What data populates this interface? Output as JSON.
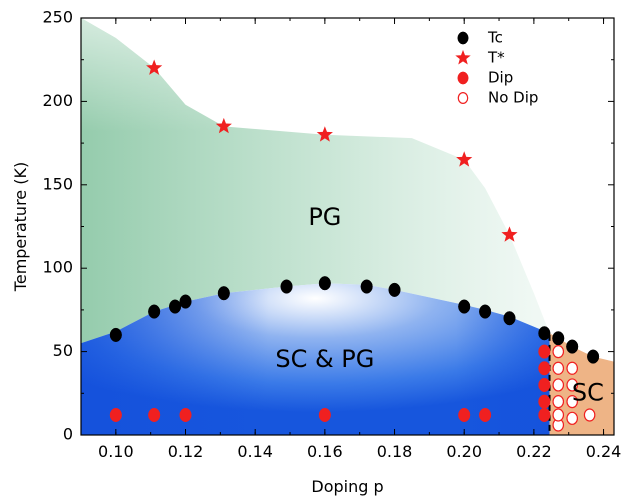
{
  "chart_data": {
    "type": "scatter",
    "title": "",
    "xlabel": "Doping p",
    "ylabel": "Temperature (K)",
    "xlim": [
      0.09,
      0.243
    ],
    "ylim": [
      0,
      250
    ],
    "xticks": [
      0.1,
      0.12,
      0.14,
      0.16,
      0.18,
      0.2,
      0.22,
      0.24
    ],
    "xtick_labels": [
      "0.10",
      "0.12",
      "0.14",
      "0.16",
      "0.18",
      "0.20",
      "0.22",
      "0.24"
    ],
    "yticks": [
      0,
      50,
      100,
      150,
      200,
      250
    ],
    "ytick_labels": [
      "0",
      "50",
      "100",
      "150",
      "200",
      "250"
    ],
    "grid": false,
    "legend_position": "top-right",
    "region_labels": [
      {
        "text": "PG",
        "x": 0.16,
        "y": 130
      },
      {
        "text": "SC & PG",
        "x": 0.16,
        "y": 45
      },
      {
        "text": "SC",
        "x": 0.2355,
        "y": 25
      }
    ],
    "boundary_line": {
      "style": "dashed",
      "color": "#000000",
      "x": 0.2245,
      "y_range": [
        0,
        60
      ]
    },
    "colors": {
      "pg_region": "#9fd2b6",
      "sc_region": "#1f63e0",
      "sc_only_region": "#eeb486",
      "tc": "#000000",
      "tstar": "#f02020",
      "dip": "#f02020"
    },
    "series": [
      {
        "name": "Tc",
        "marker": "circle",
        "color": "#000000",
        "points": [
          [
            0.1,
            60
          ],
          [
            0.111,
            74
          ],
          [
            0.117,
            77
          ],
          [
            0.12,
            80
          ],
          [
            0.131,
            85
          ],
          [
            0.149,
            89
          ],
          [
            0.16,
            91
          ],
          [
            0.172,
            89
          ],
          [
            0.18,
            87
          ],
          [
            0.2,
            77
          ],
          [
            0.206,
            74
          ],
          [
            0.213,
            70
          ],
          [
            0.223,
            61
          ],
          [
            0.227,
            58
          ],
          [
            0.231,
            53
          ],
          [
            0.237,
            47
          ]
        ]
      },
      {
        "name": "T*",
        "marker": "star",
        "color": "#f02020",
        "points": [
          [
            0.111,
            220
          ],
          [
            0.131,
            185
          ],
          [
            0.16,
            180
          ],
          [
            0.2,
            165
          ],
          [
            0.213,
            120
          ]
        ]
      },
      {
        "name": "Dip",
        "marker": "circle",
        "color": "#f02020",
        "points": [
          [
            0.1,
            12
          ],
          [
            0.111,
            12
          ],
          [
            0.12,
            12
          ],
          [
            0.16,
            12
          ],
          [
            0.2,
            12
          ],
          [
            0.206,
            12
          ],
          [
            0.223,
            12
          ],
          [
            0.223,
            20
          ],
          [
            0.223,
            30
          ],
          [
            0.223,
            40
          ],
          [
            0.223,
            50
          ]
        ]
      },
      {
        "name": "No Dip",
        "marker": "open-circle",
        "color": "#f02020",
        "points": [
          [
            0.227,
            6
          ],
          [
            0.227,
            12
          ],
          [
            0.227,
            20
          ],
          [
            0.227,
            30
          ],
          [
            0.227,
            40
          ],
          [
            0.227,
            50
          ],
          [
            0.231,
            10
          ],
          [
            0.231,
            20
          ],
          [
            0.231,
            30
          ],
          [
            0.231,
            40
          ],
          [
            0.236,
            12
          ]
        ]
      }
    ]
  }
}
